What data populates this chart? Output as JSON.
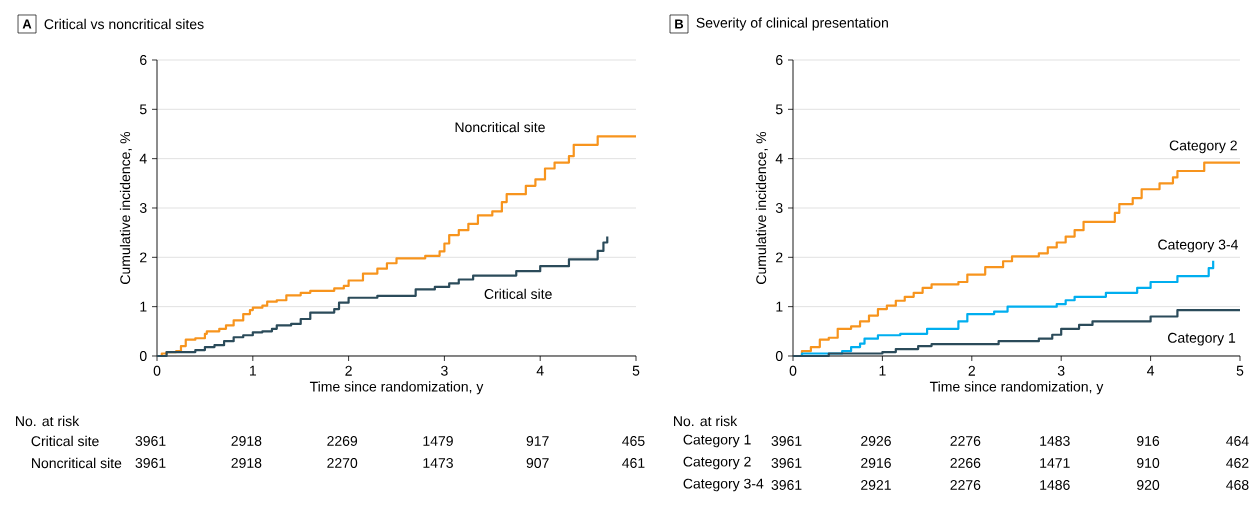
{
  "chart_data": [
    {
      "type": "step",
      "title": "Critical vs noncritical sites",
      "xlabel": "Time since randomization, y",
      "ylabel": "Cumulative incidence, %",
      "xlim": [
        0,
        5
      ],
      "ylim": [
        0,
        6
      ],
      "xticks": [
        0,
        1,
        2,
        3,
        4,
        5
      ],
      "yticks": [
        0,
        1,
        2,
        3,
        4,
        5,
        6
      ],
      "grid": "y",
      "series": [
        {
          "name": "Noncritical site",
          "color": "#f7941d",
          "x": [
            0,
            0.05,
            0.1,
            0.2,
            0.25,
            0.3,
            0.4,
            0.5,
            0.52,
            0.65,
            0.72,
            0.8,
            0.9,
            0.97,
            1.0,
            1.1,
            1.15,
            1.25,
            1.35,
            1.5,
            1.6,
            1.85,
            1.95,
            2.0,
            2.15,
            2.3,
            2.4,
            2.5,
            2.8,
            2.95,
            3.0,
            3.05,
            3.15,
            3.25,
            3.35,
            3.5,
            3.6,
            3.65,
            3.85,
            3.95,
            4.05,
            4.15,
            4.3,
            4.35,
            4.6,
            5.0
          ],
          "values": [
            0,
            0.05,
            0.08,
            0.1,
            0.2,
            0.33,
            0.36,
            0.45,
            0.5,
            0.55,
            0.62,
            0.72,
            0.85,
            0.93,
            0.98,
            1.02,
            1.1,
            1.13,
            1.23,
            1.28,
            1.32,
            1.37,
            1.42,
            1.53,
            1.67,
            1.77,
            1.88,
            1.98,
            2.03,
            2.12,
            2.28,
            2.45,
            2.55,
            2.68,
            2.85,
            2.93,
            3.12,
            3.28,
            3.45,
            3.58,
            3.8,
            3.92,
            4.05,
            4.28,
            4.45,
            4.45
          ]
        },
        {
          "name": "Critical site",
          "color": "#2b4b5a",
          "x": [
            0,
            0.1,
            0.4,
            0.5,
            0.6,
            0.7,
            0.8,
            0.9,
            1.0,
            1.1,
            1.2,
            1.25,
            1.4,
            1.5,
            1.6,
            1.85,
            1.9,
            2.0,
            2.3,
            2.7,
            2.9,
            3.05,
            3.15,
            3.3,
            3.75,
            4.0,
            4.3,
            4.6,
            4.66,
            4.7
          ],
          "values": [
            0,
            0.08,
            0.12,
            0.18,
            0.22,
            0.3,
            0.38,
            0.42,
            0.48,
            0.5,
            0.55,
            0.62,
            0.65,
            0.75,
            0.88,
            0.95,
            1.08,
            1.18,
            1.22,
            1.35,
            1.4,
            1.47,
            1.55,
            1.63,
            1.72,
            1.82,
            1.96,
            2.13,
            2.3,
            2.42
          ]
        }
      ],
      "annotations": [
        "A",
        "No. at risk",
        "Critical site",
        "3961",
        "2918",
        "2269",
        "1479",
        "917",
        "465",
        "Noncritical site",
        "3961",
        "2918",
        "2270",
        "1473",
        "907",
        "461"
      ]
    },
    {
      "type": "step",
      "title": "Severity of clinical presentation",
      "xlabel": "Time since randomization, y",
      "ylabel": "Cumulative incidence, %",
      "xlim": [
        0,
        5
      ],
      "ylim": [
        0,
        6
      ],
      "xticks": [
        0,
        1,
        2,
        3,
        4,
        5
      ],
      "yticks": [
        0,
        1,
        2,
        3,
        4,
        5,
        6
      ],
      "grid": "y",
      "series": [
        {
          "name": "Category 2",
          "color": "#f7941d",
          "x": [
            0,
            0.1,
            0.2,
            0.3,
            0.4,
            0.5,
            0.65,
            0.75,
            0.85,
            0.95,
            1.05,
            1.15,
            1.25,
            1.35,
            1.45,
            1.55,
            1.85,
            1.95,
            2.15,
            2.35,
            2.45,
            2.75,
            2.85,
            2.95,
            3.05,
            3.15,
            3.25,
            3.6,
            3.65,
            3.8,
            3.9,
            4.1,
            4.25,
            4.3,
            4.6,
            5.0
          ],
          "values": [
            0,
            0.1,
            0.18,
            0.33,
            0.37,
            0.55,
            0.6,
            0.7,
            0.82,
            0.95,
            1.02,
            1.12,
            1.2,
            1.28,
            1.38,
            1.45,
            1.5,
            1.65,
            1.8,
            1.92,
            2.02,
            2.08,
            2.2,
            2.3,
            2.42,
            2.55,
            2.72,
            2.9,
            3.08,
            3.2,
            3.38,
            3.5,
            3.62,
            3.75,
            3.92,
            3.92
          ]
        },
        {
          "name": "Category 3-4",
          "color": "#00aeef",
          "x": [
            0,
            0.1,
            0.55,
            0.65,
            0.75,
            0.8,
            0.95,
            1.2,
            1.5,
            1.85,
            1.95,
            2.25,
            2.4,
            2.95,
            3.05,
            3.15,
            3.5,
            3.85,
            4.0,
            4.3,
            4.65,
            4.7
          ],
          "values": [
            0,
            0.05,
            0.1,
            0.18,
            0.25,
            0.35,
            0.42,
            0.45,
            0.55,
            0.7,
            0.85,
            0.9,
            1.0,
            1.05,
            1.13,
            1.2,
            1.28,
            1.38,
            1.5,
            1.62,
            1.78,
            1.93
          ]
        },
        {
          "name": "Category 1",
          "color": "#2b4b5a",
          "x": [
            0,
            0.4,
            1.0,
            1.15,
            1.4,
            1.55,
            2.3,
            2.75,
            2.9,
            3.0,
            3.2,
            3.35,
            4.0,
            4.3,
            5.0
          ],
          "values": [
            0,
            0.05,
            0.08,
            0.14,
            0.2,
            0.24,
            0.3,
            0.35,
            0.43,
            0.55,
            0.63,
            0.7,
            0.8,
            0.93,
            0.93
          ]
        }
      ],
      "annotations": [
        "B",
        "No. at risk",
        "Category 1",
        "3961",
        "2926",
        "2276",
        "1483",
        "916",
        "464",
        "Category 2",
        "3961",
        "2916",
        "2266",
        "1471",
        "910",
        "462",
        "Category 3-4",
        "3961",
        "2921",
        "2276",
        "1486",
        "920",
        "468"
      ]
    }
  ]
}
